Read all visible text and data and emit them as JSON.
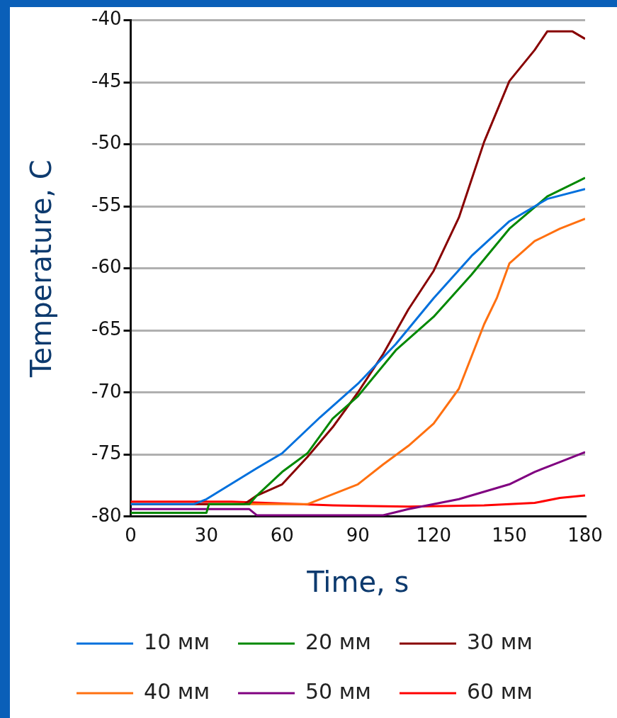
{
  "chart_data": {
    "type": "line",
    "xlabel": "Time, s",
    "ylabel": "Temperature, C",
    "xlim": [
      0,
      180
    ],
    "xticks": [
      0,
      30,
      60,
      90,
      120,
      150,
      180
    ],
    "ylim": [
      -80,
      -40
    ],
    "yticks": [
      -80,
      -75,
      -70,
      -65,
      -60,
      -55,
      -50,
      -45,
      -40
    ],
    "grid": "y",
    "legend": "bottom",
    "marker": "none",
    "line_style": "solid",
    "series": [
      {
        "name": "10 мм",
        "color": "#0070dd",
        "x": [
          0,
          25,
          30,
          50,
          60,
          75,
          90,
          105,
          120,
          135,
          150,
          165,
          180
        ],
        "values": [
          -79,
          -79,
          -78.6,
          -76.1,
          -74.9,
          -72.0,
          -69.3,
          -66.1,
          -62.4,
          -59.0,
          -56.2,
          -54.4,
          -53.6
        ]
      },
      {
        "name": "20 мм",
        "color": "#008800",
        "x": [
          0,
          30,
          31,
          47,
          50,
          60,
          70,
          80,
          90,
          105,
          120,
          135,
          150,
          165,
          180
        ],
        "values": [
          -79.7,
          -79.7,
          -79,
          -79,
          -78.3,
          -76.4,
          -74.9,
          -72.1,
          -70.3,
          -66.6,
          -63.9,
          -60.5,
          -56.8,
          -54.2,
          -52.7
        ]
      },
      {
        "name": "30 мм",
        "color": "#880000",
        "x": [
          0,
          45,
          50,
          60,
          70,
          80,
          90,
          100,
          110,
          120,
          130,
          140,
          150,
          160,
          165,
          175,
          180
        ],
        "values": [
          -79,
          -79,
          -78.3,
          -77.4,
          -75.2,
          -72.8,
          -70.0,
          -66.9,
          -63.3,
          -60.2,
          -55.9,
          -49.8,
          -44.9,
          -42.4,
          -40.9,
          -40.9,
          -41.5
        ]
      },
      {
        "name": "40 мм",
        "color": "#ff7010",
        "x": [
          0,
          70,
          75,
          90,
          100,
          110,
          120,
          130,
          140,
          145,
          150,
          160,
          170,
          180
        ],
        "values": [
          -79,
          -79,
          -78.6,
          -77.4,
          -75.8,
          -74.3,
          -72.5,
          -69.7,
          -64.5,
          -62.4,
          -59.6,
          -57.8,
          -56.8,
          -56.0
        ]
      },
      {
        "name": "50 мм",
        "color": "#800080",
        "x": [
          0,
          47,
          50,
          100,
          110,
          130,
          140,
          150,
          160,
          170,
          180
        ],
        "values": [
          -79.4,
          -79.4,
          -79.9,
          -79.9,
          -79.4,
          -78.6,
          -78.0,
          -77.4,
          -76.4,
          -75.6,
          -74.8
        ]
      },
      {
        "name": "60 мм",
        "color": "#ff0000",
        "x": [
          0,
          40,
          80,
          110,
          140,
          160,
          170,
          180
        ],
        "values": [
          -78.8,
          -78.8,
          -79.1,
          -79.2,
          -79.1,
          -78.9,
          -78.5,
          -78.3
        ]
      }
    ]
  }
}
